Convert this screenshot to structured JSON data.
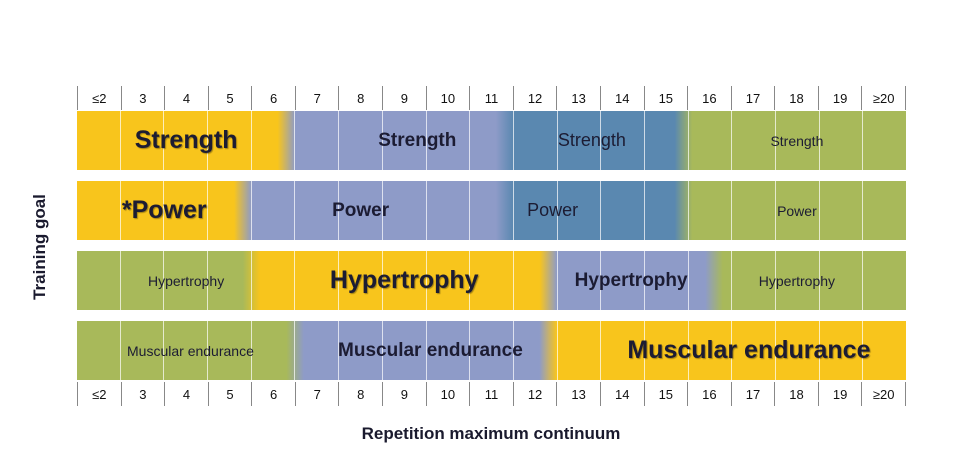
{
  "colors": {
    "yellow": "#f8c51c",
    "blue_purple": "#8e9bc8",
    "steel_blue": "#5a88b0",
    "green": "#a8b95a"
  },
  "scale_labels": [
    "≤2",
    "3",
    "4",
    "5",
    "6",
    "7",
    "8",
    "9",
    "10",
    "11",
    "12",
    "13",
    "14",
    "15",
    "16",
    "17",
    "18",
    "19",
    "≥20"
  ],
  "y_axis_label": "Training goal",
  "x_axis_label": "Repetition maximum continuum",
  "rows": [
    {
      "name": "strength",
      "segments": [
        {
          "from": 0,
          "to": 4.6,
          "color": "yellow"
        },
        {
          "from": 5.0,
          "to": 9.6,
          "color": "blue_purple"
        },
        {
          "from": 10.0,
          "to": 13.7,
          "color": "steel_blue"
        },
        {
          "from": 14.1,
          "to": 19,
          "color": "green"
        }
      ],
      "labels": [
        {
          "text": "Strength",
          "center": 2.5,
          "size": "xl"
        },
        {
          "text": "Strength",
          "center": 7.8,
          "size": "b"
        },
        {
          "text": "Strength",
          "center": 11.8,
          "size": "m"
        },
        {
          "text": "Strength",
          "center": 16.5,
          "size": "s"
        }
      ]
    },
    {
      "name": "power",
      "segments": [
        {
          "from": 0,
          "to": 3.6,
          "color": "yellow"
        },
        {
          "from": 4.0,
          "to": 9.6,
          "color": "blue_purple"
        },
        {
          "from": 10.0,
          "to": 13.7,
          "color": "steel_blue"
        },
        {
          "from": 14.1,
          "to": 19,
          "color": "green"
        }
      ],
      "labels": [
        {
          "text": "*Power",
          "center": 2.0,
          "size": "xl"
        },
        {
          "text": "Power",
          "center": 6.5,
          "size": "b"
        },
        {
          "text": "Power",
          "center": 10.9,
          "size": "m"
        },
        {
          "text": "Power",
          "center": 16.5,
          "size": "s"
        }
      ]
    },
    {
      "name": "hypertrophy",
      "segments": [
        {
          "from": 0,
          "to": 3.8,
          "color": "green"
        },
        {
          "from": 4.2,
          "to": 10.6,
          "color": "yellow"
        },
        {
          "from": 11.0,
          "to": 14.4,
          "color": "blue_purple"
        },
        {
          "from": 14.8,
          "to": 19,
          "color": "green"
        }
      ],
      "labels": [
        {
          "text": "Hypertrophy",
          "center": 2.5,
          "size": "s"
        },
        {
          "text": "Hypertrophy",
          "center": 7.5,
          "size": "xl"
        },
        {
          "text": "Hypertrophy",
          "center": 12.7,
          "size": "b"
        },
        {
          "text": "Hypertrophy",
          "center": 16.5,
          "size": "s"
        }
      ]
    },
    {
      "name": "muscular-endurance",
      "segments": [
        {
          "from": 0,
          "to": 4.8,
          "color": "green"
        },
        {
          "from": 5.2,
          "to": 10.6,
          "color": "blue_purple"
        },
        {
          "from": 11.0,
          "to": 19,
          "color": "yellow"
        }
      ],
      "labels": [
        {
          "text": "Muscular endurance",
          "center": 2.6,
          "size": "s"
        },
        {
          "text": "Muscular endurance",
          "center": 8.1,
          "size": "b"
        },
        {
          "text": "Muscular endurance",
          "center": 15.4,
          "size": "xl"
        }
      ]
    }
  ]
}
